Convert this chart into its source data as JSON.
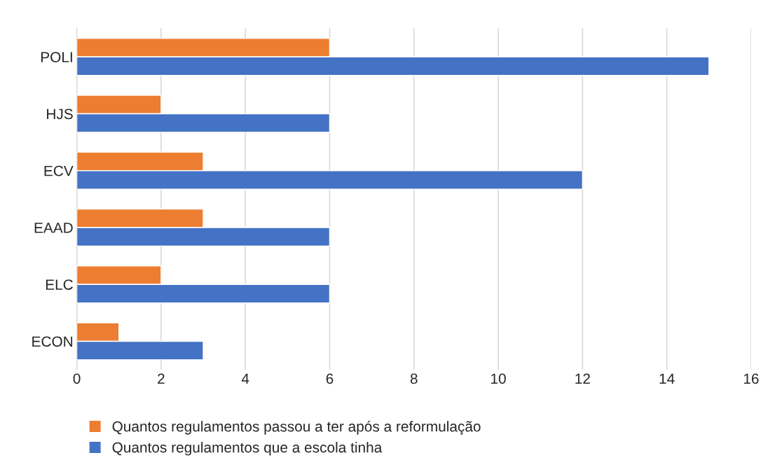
{
  "chart_data": {
    "type": "bar",
    "orientation": "horizontal",
    "categories": [
      "POLI",
      "HJS",
      "ECV",
      "EAAD",
      "ELC",
      "ECON"
    ],
    "series": [
      {
        "name": "Quantos regulamentos passou a ter após a reformulação",
        "color": "#ed7d31",
        "values": [
          6,
          2,
          3,
          3,
          2,
          1
        ]
      },
      {
        "name": "Quantos regulamentos que a escola tinha",
        "color": "#4472c4",
        "values": [
          15,
          6,
          12,
          6,
          6,
          3
        ]
      }
    ],
    "xlim": [
      0,
      16
    ],
    "xticks": [
      0,
      2,
      4,
      6,
      8,
      10,
      12,
      14,
      16
    ],
    "grid": "x",
    "legend": "bottom"
  }
}
